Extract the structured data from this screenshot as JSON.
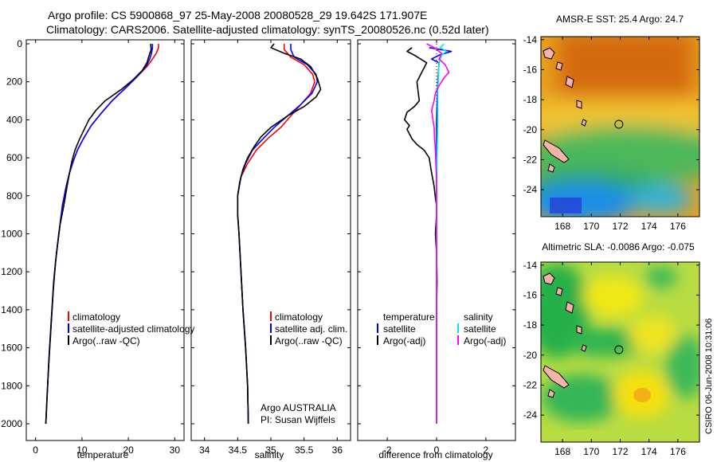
{
  "title": {
    "line1": "Argo profile: CS 5900868_97 25-May-2008 20080528_29 19.642S 171.907E",
    "line2": "Climatology: CARS2006. Satellite-adjusted climatology: synTS_20080526.nc (0.52d later)"
  },
  "colors": {
    "climatology": "#ff0000",
    "satellite": "#0000ff",
    "argo": "#000000",
    "sal_satellite": "#00e5ee",
    "sal_argo": "#ff00ff"
  },
  "chart_data": [
    {
      "id": "temperature",
      "type": "line",
      "xlabel": "temperature",
      "xlim": [
        -2,
        32
      ],
      "ylim": [
        0,
        2050
      ],
      "xticks": [
        0,
        10,
        20,
        30
      ],
      "yticks": [
        0,
        200,
        400,
        600,
        800,
        1000,
        1200,
        1400,
        1600,
        1800,
        2000
      ],
      "legend": [
        "climatology",
        "satellite-adjusted climatology",
        "Argo(..raw -QC)"
      ],
      "series": [
        {
          "name": "climatology",
          "color": "red",
          "points": [
            [
              26.5,
              0
            ],
            [
              26.5,
              20
            ],
            [
              26,
              50
            ],
            [
              25.2,
              80
            ],
            [
              24,
              120
            ],
            [
              22,
              170
            ],
            [
              19.5,
              230
            ],
            [
              16.5,
              300
            ],
            [
              14,
              370
            ],
            [
              12,
              430
            ],
            [
              10.3,
              500
            ],
            [
              9,
              560
            ],
            [
              8.1,
              620
            ],
            [
              7.3,
              680
            ],
            [
              6.6,
              750
            ],
            [
              5.8,
              850
            ],
            [
              5,
              1000
            ],
            [
              4.3,
              1150
            ],
            [
              3.8,
              1300
            ],
            [
              3.3,
              1500
            ],
            [
              2.8,
              1700
            ],
            [
              2.5,
              1850
            ],
            [
              2.2,
              2000
            ]
          ]
        },
        {
          "name": "satellite",
          "color": "blue",
          "points": [
            [
              25.2,
              0
            ],
            [
              25.2,
              20
            ],
            [
              25,
              50
            ],
            [
              24.6,
              80
            ],
            [
              23.8,
              120
            ],
            [
              22,
              170
            ],
            [
              19.5,
              230
            ],
            [
              16.5,
              300
            ],
            [
              14,
              370
            ],
            [
              12,
              430
            ],
            [
              10.3,
              500
            ],
            [
              9,
              560
            ],
            [
              8.1,
              620
            ],
            [
              7.3,
              680
            ],
            [
              6.6,
              750
            ],
            [
              5.8,
              850
            ],
            [
              5,
              1000
            ],
            [
              4.3,
              1150
            ],
            [
              3.8,
              1300
            ],
            [
              3.3,
              1500
            ],
            [
              2.8,
              1700
            ],
            [
              2.5,
              1850
            ],
            [
              2.2,
              2000
            ]
          ]
        },
        {
          "name": "argo",
          "color": "black",
          "points": [
            [
              24.8,
              0
            ],
            [
              24.9,
              30
            ],
            [
              24.5,
              60
            ],
            [
              24,
              100
            ],
            [
              23,
              140
            ],
            [
              21,
              190
            ],
            [
              18.5,
              240
            ],
            [
              15,
              300
            ],
            [
              13,
              350
            ],
            [
              11.5,
              400
            ],
            [
              10.5,
              450
            ],
            [
              9.5,
              500
            ],
            [
              8.5,
              560
            ],
            [
              7.8,
              620
            ],
            [
              7.3,
              680
            ],
            [
              6.8,
              750
            ],
            [
              6.1,
              850
            ],
            [
              5.3,
              950
            ],
            [
              4.5,
              1100
            ],
            [
              3.9,
              1250
            ],
            [
              3.4,
              1450
            ],
            [
              2.9,
              1650
            ],
            [
              2.5,
              1850
            ],
            [
              2.2,
              2000
            ]
          ]
        }
      ]
    },
    {
      "id": "salinity",
      "type": "line",
      "xlabel": "salinity",
      "xlim": [
        33.8,
        36.2
      ],
      "ylim": [
        0,
        2050
      ],
      "xticks": [
        34,
        34.5,
        35,
        35.5,
        36
      ],
      "legend": [
        "climatology",
        "satellite adj. clim.",
        "Argo(..raw -QC)"
      ],
      "annotation": [
        "Argo AUSTRALIA",
        "PI: Susan Wijffels"
      ],
      "series": [
        {
          "name": "climatology",
          "color": "red",
          "points": [
            [
              35.2,
              0
            ],
            [
              35.2,
              30
            ],
            [
              35.3,
              70
            ],
            [
              35.5,
              110
            ],
            [
              35.63,
              160
            ],
            [
              35.66,
              200
            ],
            [
              35.6,
              260
            ],
            [
              35.45,
              320
            ],
            [
              35.3,
              380
            ],
            [
              35.15,
              440
            ],
            [
              34.95,
              500
            ],
            [
              34.78,
              560
            ],
            [
              34.65,
              630
            ],
            [
              34.55,
              700
            ],
            [
              34.5,
              800
            ],
            [
              34.5,
              900
            ],
            [
              34.52,
              1000
            ],
            [
              34.55,
              1200
            ],
            [
              34.58,
              1400
            ],
            [
              34.62,
              1600
            ],
            [
              34.65,
              1800
            ],
            [
              34.66,
              2000
            ]
          ]
        },
        {
          "name": "satellite",
          "color": "blue",
          "points": [
            [
              35.3,
              0
            ],
            [
              35.3,
              30
            ],
            [
              35.35,
              70
            ],
            [
              35.55,
              110
            ],
            [
              35.68,
              160
            ],
            [
              35.7,
              200
            ],
            [
              35.62,
              260
            ],
            [
              35.45,
              320
            ],
            [
              35.25,
              380
            ],
            [
              35.05,
              440
            ],
            [
              34.88,
              500
            ],
            [
              34.72,
              560
            ],
            [
              34.62,
              630
            ],
            [
              34.55,
              700
            ],
            [
              34.5,
              800
            ],
            [
              34.5,
              900
            ],
            [
              34.52,
              1000
            ],
            [
              34.55,
              1200
            ],
            [
              34.58,
              1400
            ],
            [
              34.62,
              1600
            ],
            [
              34.65,
              1800
            ],
            [
              34.66,
              2000
            ]
          ]
        },
        {
          "name": "argo",
          "color": "black",
          "points": [
            [
              35.05,
              0
            ],
            [
              35.0,
              20
            ],
            [
              35.2,
              50
            ],
            [
              35.45,
              80
            ],
            [
              35.6,
              120
            ],
            [
              35.7,
              180
            ],
            [
              35.75,
              240
            ],
            [
              35.68,
              280
            ],
            [
              35.5,
              330
            ],
            [
              35.25,
              380
            ],
            [
              35.0,
              440
            ],
            [
              34.85,
              490
            ],
            [
              34.75,
              540
            ],
            [
              34.65,
              600
            ],
            [
              34.58,
              660
            ],
            [
              34.53,
              730
            ],
            [
              34.5,
              800
            ],
            [
              34.5,
              900
            ],
            [
              34.52,
              1000
            ],
            [
              34.55,
              1200
            ],
            [
              34.58,
              1400
            ],
            [
              34.62,
              1600
            ],
            [
              34.65,
              1800
            ],
            [
              34.66,
              2000
            ]
          ]
        }
      ]
    },
    {
      "id": "difference",
      "type": "line",
      "xlabel": "difference from climatology",
      "xlim": [
        -3.2,
        3.2
      ],
      "ylim": [
        0,
        2050
      ],
      "xticks": [
        -2,
        0,
        2
      ],
      "legend": [
        "temperature",
        "satellite",
        "Argo(-adj)",
        "salinity",
        "satellite",
        "Argo(-adj)"
      ],
      "series": [
        {
          "name": "temperature satellite",
          "color": "blue",
          "points": [
            [
              -0.3,
              20
            ],
            [
              0.6,
              40
            ],
            [
              0.1,
              60
            ],
            [
              -0.2,
              80
            ],
            [
              0.1,
              100
            ],
            [
              0.05,
              200
            ],
            [
              0,
              400
            ],
            [
              0,
              600
            ],
            [
              0,
              800
            ],
            [
              0,
              1000
            ],
            [
              0,
              1500
            ],
            [
              0,
              2000
            ]
          ]
        },
        {
          "name": "temperature Argo(-adj)",
          "color": "black",
          "points": [
            [
              -1,
              20
            ],
            [
              -1.2,
              40
            ],
            [
              -0.9,
              60
            ],
            [
              -0.4,
              100
            ],
            [
              -0.8,
              200
            ],
            [
              -0.7,
              300
            ],
            [
              -0.9,
              330
            ],
            [
              -1.2,
              360
            ],
            [
              -1.3,
              400
            ],
            [
              -1.1,
              430
            ],
            [
              -1.2,
              450
            ],
            [
              -1.0,
              500
            ],
            [
              -0.8,
              530
            ],
            [
              -0.5,
              560
            ],
            [
              -0.3,
              600
            ],
            [
              -0.2,
              680
            ],
            [
              -0.1,
              750
            ],
            [
              -0.05,
              810
            ],
            [
              0,
              850
            ],
            [
              0,
              900
            ],
            [
              -0.05,
              1000
            ],
            [
              0,
              1100
            ],
            [
              0.02,
              1250
            ],
            [
              0,
              1400
            ],
            [
              0,
              1800
            ],
            [
              0,
              2000
            ]
          ]
        },
        {
          "name": "salinity satellite",
          "color": "cyan",
          "points": [
            [
              0.3,
              0
            ],
            [
              0.15,
              20
            ],
            [
              0.4,
              40
            ],
            [
              0.2,
              60
            ],
            [
              0.1,
              100
            ],
            [
              0.05,
              250
            ],
            [
              0.05,
              400
            ],
            [
              0.02,
              600
            ],
            [
              0,
              800
            ],
            [
              0,
              1000
            ],
            [
              0,
              1500
            ],
            [
              0,
              2000
            ]
          ]
        },
        {
          "name": "salinity Argo(-adj)",
          "color": "magenta",
          "points": [
            [
              -0.4,
              0
            ],
            [
              -0.1,
              20
            ],
            [
              0.2,
              50
            ],
            [
              0.1,
              80
            ],
            [
              0.35,
              110
            ],
            [
              0.5,
              150
            ],
            [
              0.3,
              180
            ],
            [
              0.1,
              220
            ],
            [
              -0.05,
              260
            ],
            [
              -0.1,
              300
            ],
            [
              -0.2,
              350
            ],
            [
              -0.15,
              400
            ],
            [
              -0.1,
              440
            ],
            [
              -0.08,
              500
            ],
            [
              -0.05,
              560
            ],
            [
              -0.03,
              630
            ],
            [
              0,
              700
            ],
            [
              0,
              800
            ],
            [
              0,
              1000
            ],
            [
              0,
              1500
            ],
            [
              0,
              2000
            ]
          ]
        }
      ]
    },
    {
      "id": "sst_map",
      "type": "heatmap",
      "title": "AMSR-E SST: 25.4 Argo: 24.7",
      "xlim": [
        166.5,
        177.5
      ],
      "ylim": [
        -25.8,
        -13.8
      ],
      "xticks": [
        168,
        170,
        172,
        174,
        176
      ],
      "yticks": [
        -14,
        -16,
        -18,
        -20,
        -22,
        -24
      ],
      "argo_position": [
        171.907,
        -19.642
      ]
    },
    {
      "id": "sla_map",
      "type": "heatmap",
      "title": "Altimetric SLA: -0.0086 Argo: -0.075",
      "xlim": [
        166.5,
        177.5
      ],
      "ylim": [
        -25.8,
        -13.8
      ],
      "xticks": [
        168,
        170,
        172,
        174,
        176
      ],
      "yticks": [
        -14,
        -16,
        -18,
        -20,
        -22,
        -24
      ],
      "argo_position": [
        171.907,
        -19.642
      ]
    }
  ],
  "footer": "CSIRO 06-Jun-2008 10:31:06"
}
